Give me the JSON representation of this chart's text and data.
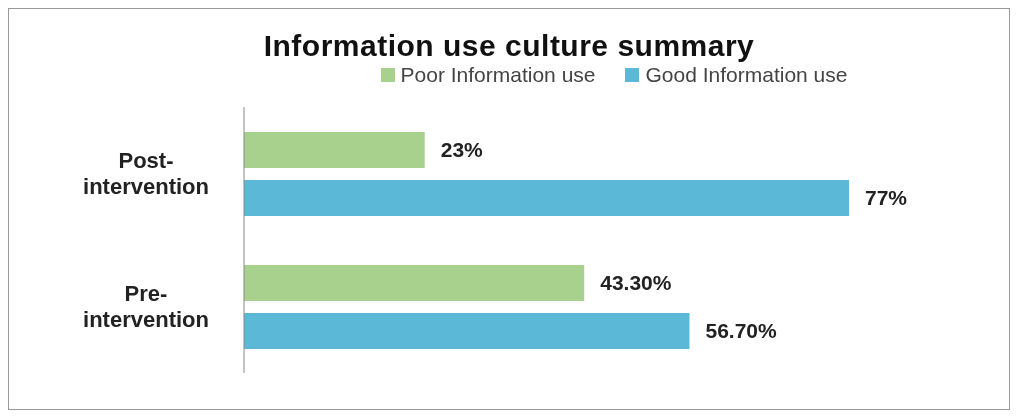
{
  "chart_data": {
    "type": "bar",
    "orientation": "horizontal",
    "title": "Information use culture summary",
    "categories": [
      "Post-intervention",
      "Pre-intervention"
    ],
    "series": [
      {
        "name": "Poor Information use",
        "color": "#a9d18e",
        "values": [
          23,
          43.3
        ],
        "value_labels": [
          "23%",
          "43.30%"
        ]
      },
      {
        "name": "Good Information use",
        "color": "#5bb8d6",
        "values": [
          77,
          56.7
        ],
        "value_labels": [
          "77%",
          "56.70%"
        ]
      }
    ],
    "legend": "top"
  }
}
